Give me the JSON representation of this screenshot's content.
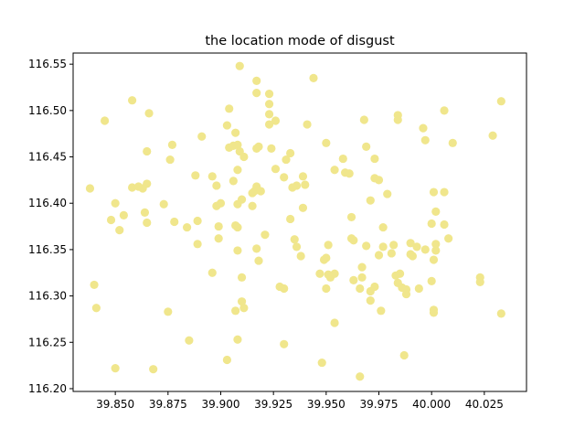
{
  "chart_data": {
    "type": "scatter",
    "title": "the location mode of disgust",
    "xlabel": "",
    "ylabel": "",
    "xlim": [
      39.83,
      40.045
    ],
    "ylim": [
      116.197,
      116.562
    ],
    "x_ticks": [
      39.85,
      39.875,
      39.9,
      39.925,
      39.95,
      39.975,
      40.0,
      40.025
    ],
    "x_tick_labels": [
      "39.850",
      "39.875",
      "39.900",
      "39.925",
      "39.950",
      "39.975",
      "40.000",
      "40.025"
    ],
    "y_ticks": [
      116.2,
      116.25,
      116.3,
      116.35,
      116.4,
      116.45,
      116.5,
      116.55
    ],
    "y_tick_labels": [
      "116.20",
      "116.25",
      "116.30",
      "116.35",
      "116.40",
      "116.45",
      "116.50",
      "116.55"
    ],
    "grid": false,
    "marker_color": "#f0e68c",
    "points": [
      [
        39.909,
        116.548
      ],
      [
        39.917,
        116.532
      ],
      [
        39.944,
        116.535
      ],
      [
        39.917,
        116.519
      ],
      [
        39.923,
        116.518
      ],
      [
        39.858,
        116.511
      ],
      [
        40.033,
        116.51
      ],
      [
        39.923,
        116.507
      ],
      [
        39.904,
        116.502
      ],
      [
        40.006,
        116.5
      ],
      [
        39.866,
        116.497
      ],
      [
        39.923,
        116.496
      ],
      [
        39.984,
        116.495
      ],
      [
        39.984,
        116.49
      ],
      [
        39.845,
        116.489
      ],
      [
        39.926,
        116.489
      ],
      [
        39.968,
        116.49
      ],
      [
        39.923,
        116.485
      ],
      [
        39.941,
        116.485
      ],
      [
        39.903,
        116.484
      ],
      [
        39.996,
        116.481
      ],
      [
        39.907,
        116.476
      ],
      [
        40.029,
        116.473
      ],
      [
        39.891,
        116.472
      ],
      [
        39.997,
        116.468
      ],
      [
        39.95,
        116.465
      ],
      [
        40.01,
        116.465
      ],
      [
        39.877,
        116.463
      ],
      [
        39.906,
        116.462
      ],
      [
        39.908,
        116.463
      ],
      [
        39.918,
        116.461
      ],
      [
        39.969,
        116.461
      ],
      [
        39.904,
        116.46
      ],
      [
        39.917,
        116.459
      ],
      [
        39.924,
        116.459
      ],
      [
        39.909,
        116.456
      ],
      [
        39.865,
        116.456
      ],
      [
        39.933,
        116.454
      ],
      [
        39.911,
        116.45
      ],
      [
        39.958,
        116.448
      ],
      [
        39.973,
        116.448
      ],
      [
        39.876,
        116.447
      ],
      [
        39.931,
        116.447
      ],
      [
        39.926,
        116.437
      ],
      [
        39.954,
        116.436
      ],
      [
        39.908,
        116.436
      ],
      [
        39.959,
        116.433
      ],
      [
        39.961,
        116.432
      ],
      [
        39.888,
        116.43
      ],
      [
        39.896,
        116.429
      ],
      [
        39.939,
        116.429
      ],
      [
        39.93,
        116.428
      ],
      [
        39.973,
        116.427
      ],
      [
        39.975,
        116.425
      ],
      [
        39.906,
        116.424
      ],
      [
        39.865,
        116.421
      ],
      [
        39.898,
        116.419
      ],
      [
        39.94,
        116.42
      ],
      [
        39.861,
        116.418
      ],
      [
        39.917,
        116.418
      ],
      [
        39.936,
        116.419
      ],
      [
        39.858,
        116.417
      ],
      [
        39.863,
        116.416
      ],
      [
        39.838,
        116.416
      ],
      [
        39.916,
        116.413
      ],
      [
        39.934,
        116.417
      ],
      [
        39.919,
        116.413
      ],
      [
        39.915,
        116.411
      ],
      [
        40.001,
        116.412
      ],
      [
        40.006,
        116.412
      ],
      [
        39.979,
        116.41
      ],
      [
        39.91,
        116.404
      ],
      [
        39.971,
        116.403
      ],
      [
        39.9,
        116.4
      ],
      [
        39.85,
        116.4
      ],
      [
        39.873,
        116.399
      ],
      [
        39.908,
        116.399
      ],
      [
        39.898,
        116.397
      ],
      [
        39.915,
        116.397
      ],
      [
        39.939,
        116.395
      ],
      [
        40.002,
        116.391
      ],
      [
        39.864,
        116.39
      ],
      [
        39.854,
        116.387
      ],
      [
        39.962,
        116.385
      ],
      [
        39.933,
        116.383
      ],
      [
        39.848,
        116.382
      ],
      [
        39.889,
        116.381
      ],
      [
        39.878,
        116.38
      ],
      [
        39.865,
        116.379
      ],
      [
        40.0,
        116.378
      ],
      [
        40.006,
        116.377
      ],
      [
        39.907,
        116.376
      ],
      [
        39.899,
        116.375
      ],
      [
        39.908,
        116.374
      ],
      [
        39.884,
        116.374
      ],
      [
        39.977,
        116.374
      ],
      [
        39.852,
        116.371
      ],
      [
        39.921,
        116.366
      ],
      [
        40.008,
        116.362
      ],
      [
        39.962,
        116.362
      ],
      [
        39.899,
        116.362
      ],
      [
        39.935,
        116.361
      ],
      [
        39.963,
        116.36
      ],
      [
        39.889,
        116.356
      ],
      [
        39.982,
        116.355
      ],
      [
        39.951,
        116.355
      ],
      [
        39.99,
        116.357
      ],
      [
        40.002,
        116.356
      ],
      [
        39.993,
        116.353
      ],
      [
        39.969,
        116.354
      ],
      [
        39.936,
        116.353
      ],
      [
        39.977,
        116.353
      ],
      [
        39.917,
        116.351
      ],
      [
        39.997,
        116.35
      ],
      [
        39.908,
        116.349
      ],
      [
        40.002,
        116.349
      ],
      [
        39.981,
        116.346
      ],
      [
        39.99,
        116.345
      ],
      [
        39.975,
        116.344
      ],
      [
        39.991,
        116.343
      ],
      [
        39.938,
        116.343
      ],
      [
        39.95,
        116.341
      ],
      [
        39.949,
        116.339
      ],
      [
        40.001,
        116.339
      ],
      [
        39.918,
        116.338
      ],
      [
        39.967,
        116.331
      ],
      [
        39.896,
        116.325
      ],
      [
        39.947,
        116.324
      ],
      [
        39.985,
        116.324
      ],
      [
        39.954,
        116.324
      ],
      [
        39.951,
        116.323
      ],
      [
        39.983,
        116.322
      ],
      [
        39.967,
        116.32
      ],
      [
        39.952,
        116.32
      ],
      [
        40.023,
        116.32
      ],
      [
        39.91,
        116.32
      ],
      [
        39.963,
        116.317
      ],
      [
        40.023,
        116.315
      ],
      [
        40.0,
        116.316
      ],
      [
        39.984,
        116.314
      ],
      [
        39.84,
        116.312
      ],
      [
        39.973,
        116.31
      ],
      [
        39.928,
        116.31
      ],
      [
        39.986,
        116.309
      ],
      [
        39.994,
        116.308
      ],
      [
        39.93,
        116.308
      ],
      [
        39.966,
        116.308
      ],
      [
        39.988,
        116.307
      ],
      [
        39.95,
        116.308
      ],
      [
        39.988,
        116.302
      ],
      [
        39.971,
        116.305
      ],
      [
        39.91,
        116.294
      ],
      [
        39.971,
        116.295
      ],
      [
        39.907,
        116.284
      ],
      [
        39.911,
        116.287
      ],
      [
        39.841,
        116.287
      ],
      [
        40.001,
        116.285
      ],
      [
        39.875,
        116.283
      ],
      [
        40.001,
        116.282
      ],
      [
        40.033,
        116.281
      ],
      [
        39.976,
        116.284
      ],
      [
        39.954,
        116.271
      ],
      [
        39.908,
        116.253
      ],
      [
        39.885,
        116.252
      ],
      [
        39.93,
        116.248
      ],
      [
        39.987,
        116.236
      ],
      [
        39.903,
        116.231
      ],
      [
        39.948,
        116.228
      ],
      [
        39.85,
        116.222
      ],
      [
        39.868,
        116.221
      ],
      [
        39.966,
        116.213
      ]
    ]
  }
}
